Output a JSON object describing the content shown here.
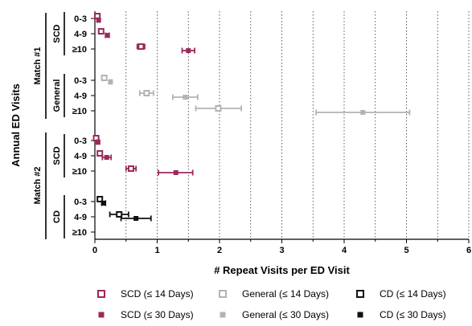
{
  "chart_data": {
    "type": "scatter",
    "orientation": "horizontal",
    "title": "",
    "xlabel": "# Repeat Visits per ED Visit",
    "ylabel": "Annual ED Visits",
    "xlim": [
      0,
      6
    ],
    "x_ticks": [
      "0",
      "1",
      "2",
      "3",
      "4",
      "5",
      "6"
    ],
    "grid": "vertical dotted",
    "legend_position": "bottom",
    "colors": {
      "SCD": "#9b2a5a",
      "General": "#b3b3b3",
      "CD": "#111111"
    },
    "matches": [
      {
        "label": "Match #1",
        "groups": [
          {
            "label": "SCD",
            "categories": [
              "0-3",
              "4-9",
              "≥10"
            ]
          },
          {
            "label": "General",
            "categories": [
              "0-3",
              "4-9",
              "≥10"
            ]
          }
        ]
      },
      {
        "label": "Match #2",
        "groups": [
          {
            "label": "SCD",
            "categories": [
              "0-3",
              "4-9",
              "≥10"
            ]
          },
          {
            "label": "CD",
            "categories": [
              "0-3",
              "4-9",
              "≥10"
            ]
          }
        ]
      }
    ],
    "series": [
      {
        "name": "SCD (≤ 14 Days)",
        "group": "SCD",
        "window": "14",
        "marker": "square-open",
        "color": "#9b2a5a",
        "points": [
          {
            "match": 0,
            "category": "0-3",
            "x": 0.04,
            "lo": 0.0,
            "hi": 0.08
          },
          {
            "match": 0,
            "category": "4-9",
            "x": 0.1,
            "lo": 0.07,
            "hi": 0.13
          },
          {
            "match": 0,
            "category": "≥10",
            "x": 0.74,
            "lo": 0.68,
            "hi": 0.8
          },
          {
            "match": 1,
            "category": "0-3",
            "x": 0.02,
            "lo": 0.0,
            "hi": 0.06
          },
          {
            "match": 1,
            "category": "4-9",
            "x": 0.08,
            "lo": 0.05,
            "hi": 0.11
          },
          {
            "match": 1,
            "category": "≥10",
            "x": 0.58,
            "lo": 0.5,
            "hi": 0.66
          }
        ]
      },
      {
        "name": "SCD (≤ 30 Days)",
        "group": "SCD",
        "window": "30",
        "marker": "square-filled",
        "color": "#9b2a5a",
        "points": [
          {
            "match": 0,
            "category": "0-3",
            "x": 0.06,
            "lo": 0.04,
            "hi": 0.08
          },
          {
            "match": 0,
            "category": "4-9",
            "x": 0.2,
            "lo": 0.17,
            "hi": 0.23
          },
          {
            "match": 0,
            "category": "≥10",
            "x": 1.5,
            "lo": 1.4,
            "hi": 1.6
          },
          {
            "match": 1,
            "category": "0-3",
            "x": 0.05,
            "lo": 0.03,
            "hi": 0.07
          },
          {
            "match": 1,
            "category": "4-9",
            "x": 0.19,
            "lo": 0.12,
            "hi": 0.26
          },
          {
            "match": 1,
            "category": "≥10",
            "x": 1.3,
            "lo": 1.02,
            "hi": 1.57
          }
        ]
      },
      {
        "name": "General (≤ 14 Days)",
        "group": "General",
        "window": "14",
        "marker": "square-open",
        "color": "#b3b3b3",
        "points": [
          {
            "match": 0,
            "category": "0-3",
            "x": 0.15,
            "lo": 0.13,
            "hi": 0.17
          },
          {
            "match": 0,
            "category": "4-9",
            "x": 0.83,
            "lo": 0.72,
            "hi": 0.94
          },
          {
            "match": 0,
            "category": "≥10",
            "x": 1.98,
            "lo": 1.62,
            "hi": 2.35
          }
        ]
      },
      {
        "name": "General (≤ 30 Days)",
        "group": "General",
        "window": "30",
        "marker": "square-filled",
        "color": "#b3b3b3",
        "points": [
          {
            "match": 0,
            "category": "0-3",
            "x": 0.25,
            "lo": 0.23,
            "hi": 0.27
          },
          {
            "match": 0,
            "category": "4-9",
            "x": 1.45,
            "lo": 1.25,
            "hi": 1.65
          },
          {
            "match": 0,
            "category": "≥10",
            "x": 4.3,
            "lo": 3.55,
            "hi": 5.05
          }
        ]
      },
      {
        "name": "CD (≤ 14 Days)",
        "group": "CD",
        "window": "14",
        "marker": "square-open",
        "color": "#111111",
        "points": [
          {
            "match": 1,
            "category": "0-3",
            "x": 0.08,
            "lo": 0.05,
            "hi": 0.11
          },
          {
            "match": 1,
            "category": "4-9",
            "x": 0.39,
            "lo": 0.24,
            "hi": 0.54
          }
        ]
      },
      {
        "name": "CD (≤ 30 Days)",
        "group": "CD",
        "window": "30",
        "marker": "square-filled",
        "color": "#111111",
        "points": [
          {
            "match": 1,
            "category": "0-3",
            "x": 0.14,
            "lo": 0.11,
            "hi": 0.17
          },
          {
            "match": 1,
            "category": "4-9",
            "x": 0.66,
            "lo": 0.42,
            "hi": 0.9
          }
        ]
      }
    ],
    "legend": [
      "SCD (≤ 14 Days)",
      "General (≤ 14 Days)",
      "CD (≤ 14 Days)",
      "SCD (≤ 30 Days)",
      "General (≤ 30 Days)",
      "CD (≤ 30 Days)"
    ]
  }
}
